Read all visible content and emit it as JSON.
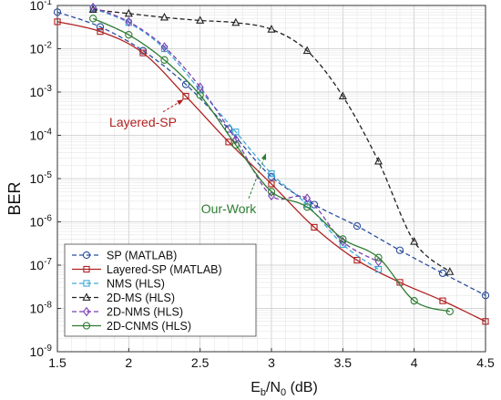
{
  "chart_data": {
    "type": "line",
    "title": "",
    "xlabel": "E",
    "xlabel_sub": "b",
    "xlabel_mid": "/N",
    "xlabel_sub2": "0",
    "xlabel_unit": " (dB)",
    "ylabel": "BER",
    "xlim": [
      1.5,
      4.5
    ],
    "ylim_log10": [
      -9,
      -1
    ],
    "y_scale": "log",
    "grid": true,
    "legend_placement": "bottom-left",
    "x_ticks": [
      "1.5",
      "2",
      "2.5",
      "3",
      "3.5",
      "4",
      "4.5"
    ],
    "x_tick_values": [
      1.5,
      2,
      2.5,
      3,
      3.5,
      4,
      4.5
    ],
    "y_ticks": [
      {
        "base": "10",
        "exp": "-1",
        "value": -1
      },
      {
        "base": "10",
        "exp": "-2",
        "value": -2
      },
      {
        "base": "10",
        "exp": "-3",
        "value": -3
      },
      {
        "base": "10",
        "exp": "-4",
        "value": -4
      },
      {
        "base": "10",
        "exp": "-5",
        "value": -5
      },
      {
        "base": "10",
        "exp": "-6",
        "value": -6
      },
      {
        "base": "10",
        "exp": "-7",
        "value": -7
      },
      {
        "base": "10",
        "exp": "-8",
        "value": -8
      },
      {
        "base": "10",
        "exp": "-9",
        "value": -9
      }
    ],
    "series": [
      {
        "name": "SP (MATLAB)",
        "color": "#2b4f9e",
        "dash": "dash",
        "marker": "circle",
        "x": [
          1.5,
          1.8,
          2.1,
          2.4,
          2.7,
          3.0,
          3.3,
          3.6,
          3.9,
          4.2,
          4.5
        ],
        "y": [
          0.07,
          0.032,
          0.009,
          0.0015,
          0.00014,
          1.1e-05,
          2.5e-06,
          8e-07,
          2.2e-07,
          6.5e-08,
          2e-08
        ]
      },
      {
        "name": "Layered-SP (MATLAB)",
        "color": "#b02020",
        "dash": "solid",
        "marker": "square",
        "x": [
          1.5,
          1.8,
          2.1,
          2.4,
          2.7,
          3.0,
          3.3,
          3.6,
          3.9,
          4.2,
          4.5
        ],
        "y": [
          0.042,
          0.025,
          0.008,
          0.0008,
          7e-05,
          7.5e-06,
          7.5e-07,
          1.3e-07,
          4e-08,
          1.5e-08,
          5e-09
        ]
      },
      {
        "name": "NMS (HLS)",
        "color": "#3fa9d9",
        "dash": "dash",
        "marker": "square",
        "x": [
          1.75,
          2.0,
          2.25,
          2.5,
          2.75,
          3.0,
          3.25,
          3.5,
          3.75
        ],
        "y": [
          0.085,
          0.04,
          0.01,
          0.0011,
          0.00012,
          1.3e-05,
          2.5e-06,
          3e-07,
          8e-08
        ]
      },
      {
        "name": "2D-MS (HLS)",
        "color": "#222222",
        "dash": "dash",
        "marker": "triangle",
        "x": [
          1.75,
          2.0,
          2.25,
          2.5,
          2.75,
          3.0,
          3.25,
          3.5,
          3.75,
          4.0,
          4.25
        ],
        "y": [
          0.08,
          0.065,
          0.053,
          0.045,
          0.04,
          0.028,
          0.009,
          0.0008,
          2.5e-05,
          3.5e-07,
          7e-08
        ]
      },
      {
        "name": "2D-NMS (HLS)",
        "color": "#7a3fb0",
        "dash": "dash",
        "marker": "diamond",
        "x": [
          1.75,
          2.0,
          2.25,
          2.5,
          2.75,
          3.0,
          3.25,
          3.5,
          3.75
        ],
        "y": [
          0.09,
          0.042,
          0.011,
          0.0013,
          8e-05,
          4e-06,
          3.5e-06,
          3.5e-07,
          1.2e-07
        ]
      },
      {
        "name": "2D-CNMS (HLS)",
        "color": "#2e7d32",
        "dash": "solid",
        "marker": "circle",
        "x": [
          1.75,
          2.0,
          2.25,
          2.5,
          2.75,
          3.0,
          3.25,
          3.5,
          3.75,
          4.0,
          4.25
        ],
        "y": [
          0.05,
          0.021,
          0.0055,
          0.00085,
          6e-05,
          5e-06,
          2.2e-06,
          4e-07,
          1.5e-07,
          1.5e-08,
          8.5e-09
        ]
      }
    ],
    "annotations": [
      {
        "text": "Layered-SP",
        "color": "#b02020",
        "x_text": 2.1,
        "y_text": 0.00016,
        "x_to": 2.38,
        "y_to": 0.0008
      },
      {
        "text": "Our-Work",
        "color": "#2e7d32",
        "x_text": 2.7,
        "y_text": 1.6e-06,
        "x_to": 2.96,
        "y_to": 4.5e-05
      }
    ]
  }
}
